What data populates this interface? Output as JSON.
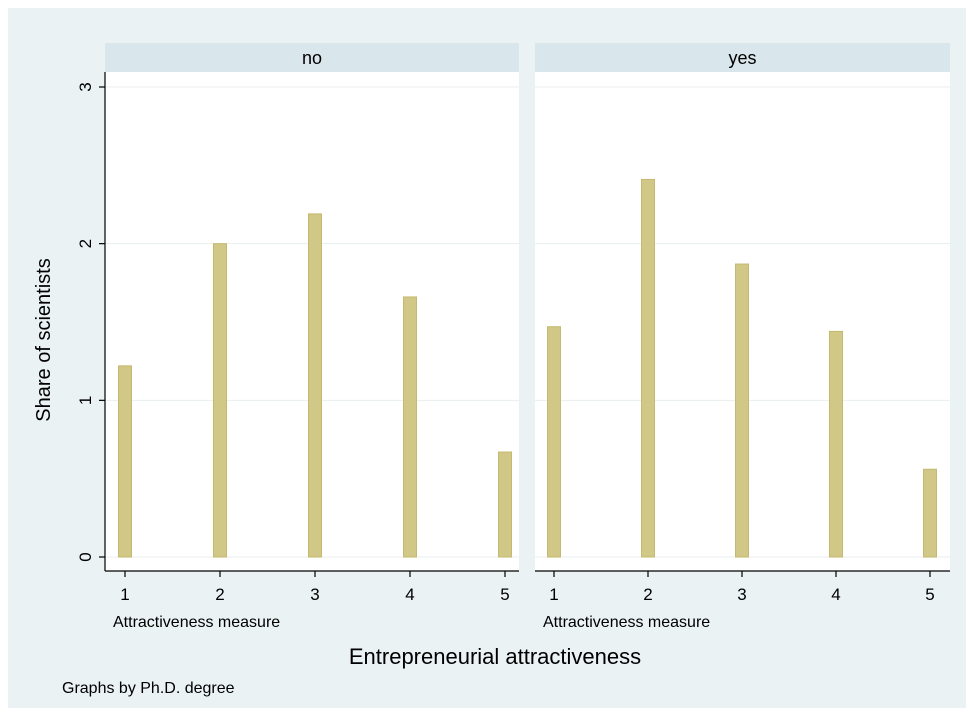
{
  "figure": {
    "background": "#eaf2f3",
    "plot_background": "#ffffff",
    "strip_background": "#d9e6eb",
    "bar_fill": "#d1c887",
    "bar_stroke": "#c4b96e",
    "grid_color": "#e8eef0",
    "axis_color": "#000000"
  },
  "labels": {
    "y_axis_title": "Share of scientists",
    "panel_x_label": "Attractiveness measure",
    "overall_x_title": "Entrepreneurial attractiveness",
    "note": "Graphs by Ph.D. degree"
  },
  "chart_data": {
    "type": "bar",
    "categories": [
      1,
      2,
      3,
      4,
      5
    ],
    "ylim": [
      0,
      3
    ],
    "yticks": [
      0,
      1,
      2,
      3
    ],
    "xticks": [
      1,
      2,
      3,
      4,
      5
    ],
    "grid": true,
    "ylabel": "Share of scientists",
    "xlabel": "Entrepreneurial attractiveness",
    "panels": [
      {
        "name": "no",
        "values": [
          1.22,
          2.0,
          2.19,
          1.66,
          0.67
        ]
      },
      {
        "name": "yes",
        "values": [
          1.47,
          2.41,
          1.87,
          1.44,
          0.56
        ]
      }
    ]
  }
}
